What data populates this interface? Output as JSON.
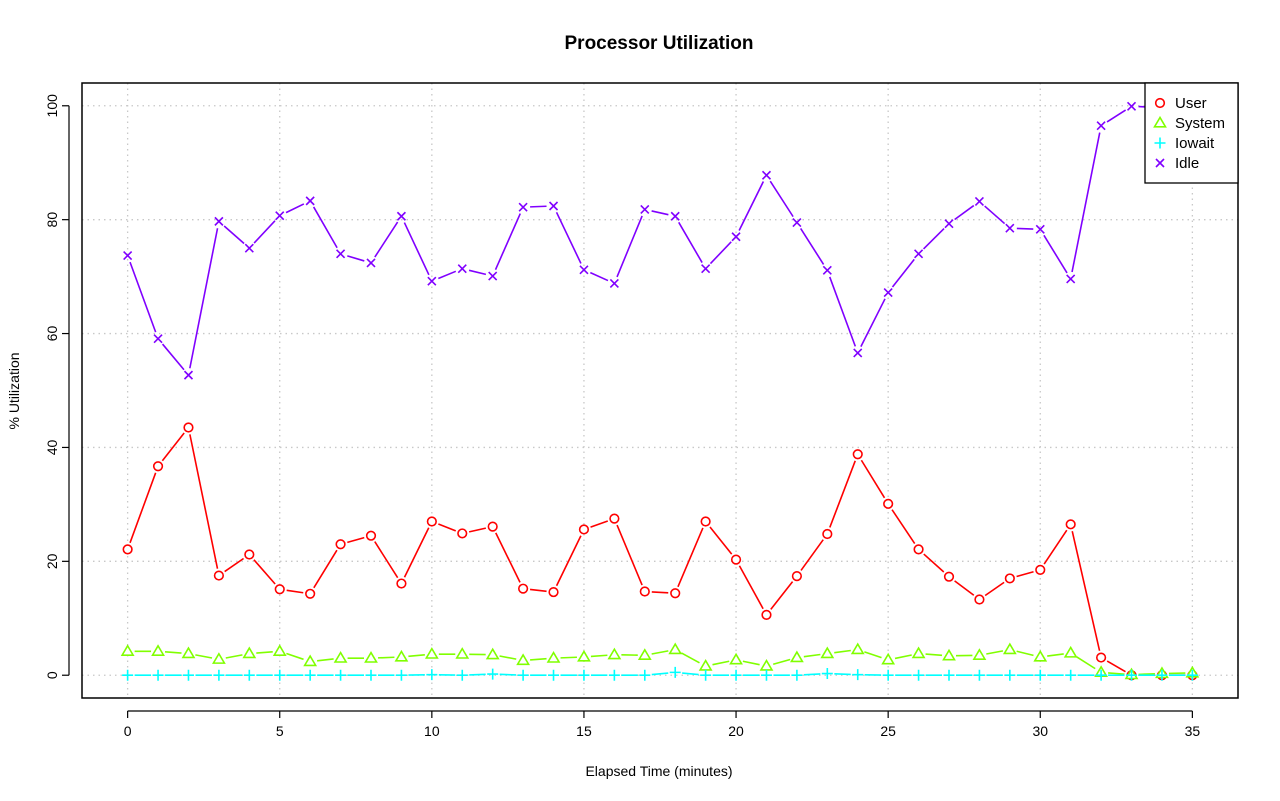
{
  "chart_data": {
    "type": "line",
    "title": "Processor Utilization",
    "xlabel": "Elapsed Time (minutes)",
    "ylabel": "% Utilization",
    "xlim": [
      -1.5,
      36.5
    ],
    "ylim": [
      -4,
      104
    ],
    "xticks": [
      0,
      5,
      10,
      15,
      20,
      25,
      30,
      35
    ],
    "yticks": [
      0,
      20,
      40,
      60,
      80,
      100
    ],
    "grid": true,
    "legend_position": "top-right",
    "x": [
      0,
      1,
      2,
      3,
      4,
      5,
      6,
      7,
      8,
      9,
      10,
      11,
      12,
      13,
      14,
      15,
      16,
      17,
      18,
      19,
      20,
      21,
      22,
      23,
      24,
      25,
      26,
      27,
      28,
      29,
      30,
      31,
      32,
      33,
      34,
      35
    ],
    "series": [
      {
        "name": "User",
        "color": "#ff0000",
        "marker": "circle",
        "values": [
          22.1,
          36.7,
          43.5,
          17.5,
          21.2,
          15.1,
          14.3,
          23.0,
          24.5,
          16.1,
          27.0,
          24.9,
          26.1,
          15.2,
          14.6,
          25.6,
          27.5,
          14.7,
          14.4,
          27.0,
          20.3,
          10.6,
          17.4,
          24.8,
          38.8,
          30.1,
          22.1,
          17.3,
          13.3,
          17.0,
          18.5,
          26.5,
          3.1,
          0.0,
          0.0,
          0.0
        ]
      },
      {
        "name": "System",
        "color": "#80ff00",
        "marker": "triangle",
        "values": [
          4.2,
          4.2,
          3.8,
          2.8,
          3.8,
          4.2,
          2.4,
          3.0,
          3.0,
          3.2,
          3.7,
          3.7,
          3.6,
          2.6,
          3.0,
          3.2,
          3.6,
          3.5,
          4.5,
          1.6,
          2.7,
          1.6,
          3.1,
          3.8,
          4.5,
          2.7,
          3.8,
          3.4,
          3.5,
          4.5,
          3.2,
          3.9,
          0.5,
          0.1,
          0.3,
          0.4
        ]
      },
      {
        "name": "Iowait",
        "color": "#00ffff",
        "marker": "plus",
        "values": [
          0.0,
          0.0,
          0.0,
          0.0,
          0.0,
          0.0,
          0.0,
          0.0,
          0.0,
          0.0,
          0.1,
          0.0,
          0.2,
          0.0,
          0.0,
          0.0,
          0.0,
          0.0,
          0.5,
          0.0,
          0.0,
          0.0,
          0.0,
          0.3,
          0.1,
          0.0,
          0.0,
          0.0,
          0.0,
          0.0,
          0.0,
          0.0,
          0.0,
          0.0,
          0.0,
          0.0
        ]
      },
      {
        "name": "Idle",
        "color": "#8000ff",
        "marker": "x",
        "values": [
          73.7,
          59.1,
          52.7,
          79.7,
          75.0,
          80.7,
          83.3,
          74.0,
          72.4,
          80.6,
          69.2,
          71.4,
          70.1,
          82.2,
          82.4,
          71.2,
          68.8,
          81.8,
          80.6,
          71.4,
          77.0,
          87.8,
          79.5,
          71.1,
          56.6,
          67.2,
          74.0,
          79.3,
          83.2,
          78.5,
          78.3,
          69.6,
          96.5,
          99.9,
          99.7,
          99.6
        ]
      }
    ]
  }
}
